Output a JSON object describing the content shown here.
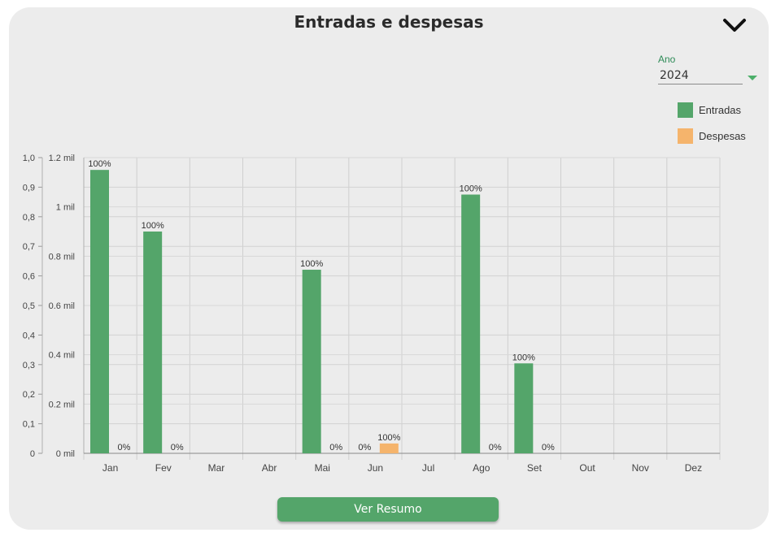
{
  "card": {
    "title": "Entradas e despesas",
    "toggle_icon": "chevron-down-icon"
  },
  "year_select": {
    "label": "Ano",
    "value": "2024",
    "dropdown_icon": "caret-down-icon"
  },
  "button": {
    "label": "Ver Resumo"
  },
  "colors": {
    "entradas": "#54a56a",
    "despesas": "#f5b46c",
    "accent": "#2e8b57"
  },
  "chart_data": {
    "type": "bar",
    "title": "Entradas e despesas",
    "categories": [
      "Jan",
      "Fev",
      "Mar",
      "Abr",
      "Mai",
      "Jun",
      "Jul",
      "Ago",
      "Set",
      "Out",
      "Nov",
      "Dez"
    ],
    "series": [
      {
        "name": "Entradas",
        "color": "#54a56a",
        "values": [
          1150,
          900,
          null,
          null,
          745,
          0,
          null,
          1050,
          365,
          null,
          null,
          null
        ],
        "labels": [
          "100%",
          "100%",
          null,
          null,
          "100%",
          "0%",
          null,
          "100%",
          "100%",
          null,
          null,
          null
        ]
      },
      {
        "name": "Despesas",
        "color": "#f5b46c",
        "values": [
          0,
          0,
          null,
          null,
          0,
          40,
          null,
          0,
          0,
          null,
          null,
          null
        ],
        "labels": [
          "0%",
          "0%",
          null,
          null,
          "0%",
          "100%",
          null,
          "0%",
          "0%",
          null,
          null,
          null
        ]
      }
    ],
    "y_axis_left": {
      "ticks": [
        "0",
        "0,1",
        "0,2",
        "0,3",
        "0,4",
        "0,5",
        "0,6",
        "0,7",
        "0,8",
        "0,9",
        "1,0"
      ],
      "ylim": [
        0,
        1
      ]
    },
    "y_axis_right": {
      "ticks": [
        "0 mil",
        "0.2 mil",
        "0.4 mil",
        "0.6 mil",
        "0.8 mil",
        "1 mil",
        "1.2 mil"
      ],
      "ylim": [
        0,
        1200
      ]
    },
    "grid": true,
    "legend_position": "top-right"
  }
}
